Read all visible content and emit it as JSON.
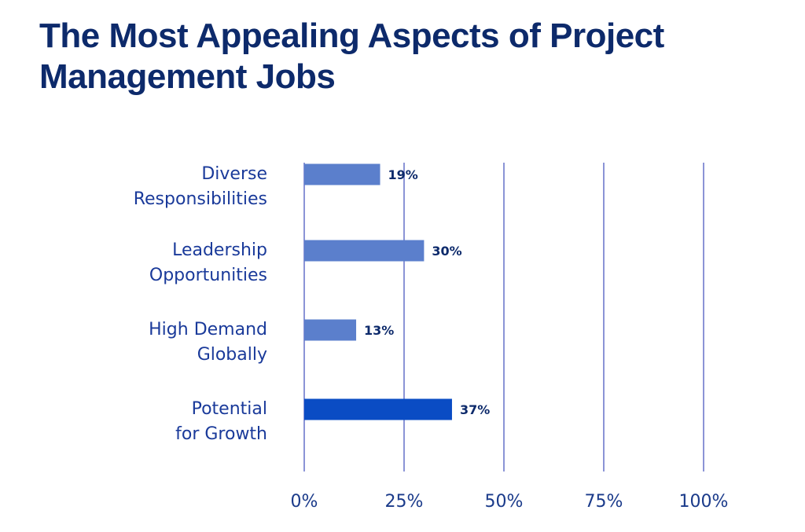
{
  "chart_data": {
    "type": "bar",
    "orientation": "horizontal",
    "title": "The Most Appealing Aspects of Project Management Jobs",
    "categories": [
      [
        "Diverse",
        "Responsibilities"
      ],
      [
        "Leadership",
        "Opportunities"
      ],
      [
        "High Demand",
        "Globally"
      ],
      [
        "Potential",
        "for Growth"
      ]
    ],
    "category_names": [
      "Diverse Responsibilities",
      "Leadership Opportunities",
      "High Demand Globally",
      "Potential for Growth"
    ],
    "values": [
      19,
      30,
      13,
      37
    ],
    "value_labels": [
      "19%",
      "30%",
      "13%",
      "37%"
    ],
    "highlight_index": 3,
    "xlabel": "",
    "ylabel": "",
    "xlim": [
      0,
      100
    ],
    "xticks": [
      0,
      25,
      50,
      75,
      100
    ],
    "xtick_labels": [
      "0%",
      "25%",
      "50%",
      "75%",
      "100%"
    ],
    "grid": "vertical",
    "legend": "none",
    "colors": {
      "bar": "#5b7fcc",
      "bar_highlight": "#0a4cc4",
      "grid": "#8b94d6",
      "title": "#0d2a6b",
      "labels": "#1a3a9a"
    }
  }
}
